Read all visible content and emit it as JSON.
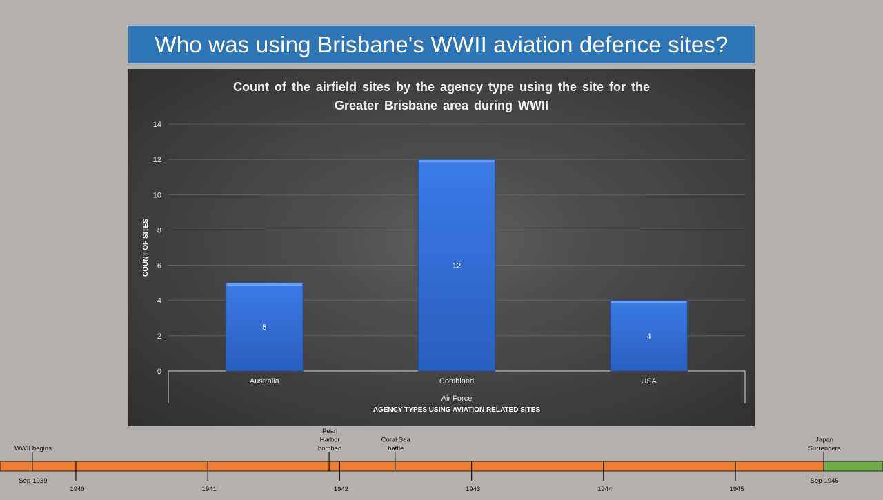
{
  "slide": {
    "title": "Who was using Brisbane's WWII aviation defence sites?"
  },
  "chart_data": {
    "type": "bar",
    "title": "Count of the airfield sites by the agency type using the site for the Greater Brisbane area during WWII",
    "title_lines": [
      "Count of the airfield sites by the agency type using the site for the",
      "Greater Brisbane area during WWII"
    ],
    "categories": [
      "Australia",
      "Combined",
      "USA"
    ],
    "values": [
      5,
      12,
      4
    ],
    "data_labels": [
      "5",
      "12",
      "4"
    ],
    "group_label": "Air Force",
    "xlabel": "AGENCY TYPES USING AVIATION RELATED SITES",
    "ylabel": "COUNT OF SITES",
    "ylim": [
      0,
      14
    ],
    "yticks": [
      0,
      2,
      4,
      6,
      8,
      10,
      12,
      14
    ],
    "grid": true,
    "legend": "none",
    "bar_color": "#3170d8",
    "background": "#474747"
  },
  "timeline": {
    "start_year": 1939.67,
    "end_year": 1945.67,
    "war_color": "#ed7d31",
    "post_war_color": "#70ad47",
    "years": [
      "1940",
      "1941",
      "1942",
      "1943",
      "1944",
      "1945"
    ],
    "year_positions": [
      1940,
      1941,
      1942,
      1943,
      1944,
      1945
    ],
    "events": [
      {
        "lines": [
          "WWII begins"
        ],
        "date": "Sep-1939",
        "at": 1939.67
      },
      {
        "lines": [
          "Pearl",
          "Harbor",
          "bombed"
        ],
        "date": "",
        "at": 1941.92
      },
      {
        "lines": [
          "Coral Sea",
          "battle"
        ],
        "date": "",
        "at": 1942.42
      },
      {
        "lines": [
          "Japan",
          "Surrenders"
        ],
        "date": "Sep-1945",
        "at": 1945.67
      }
    ]
  }
}
